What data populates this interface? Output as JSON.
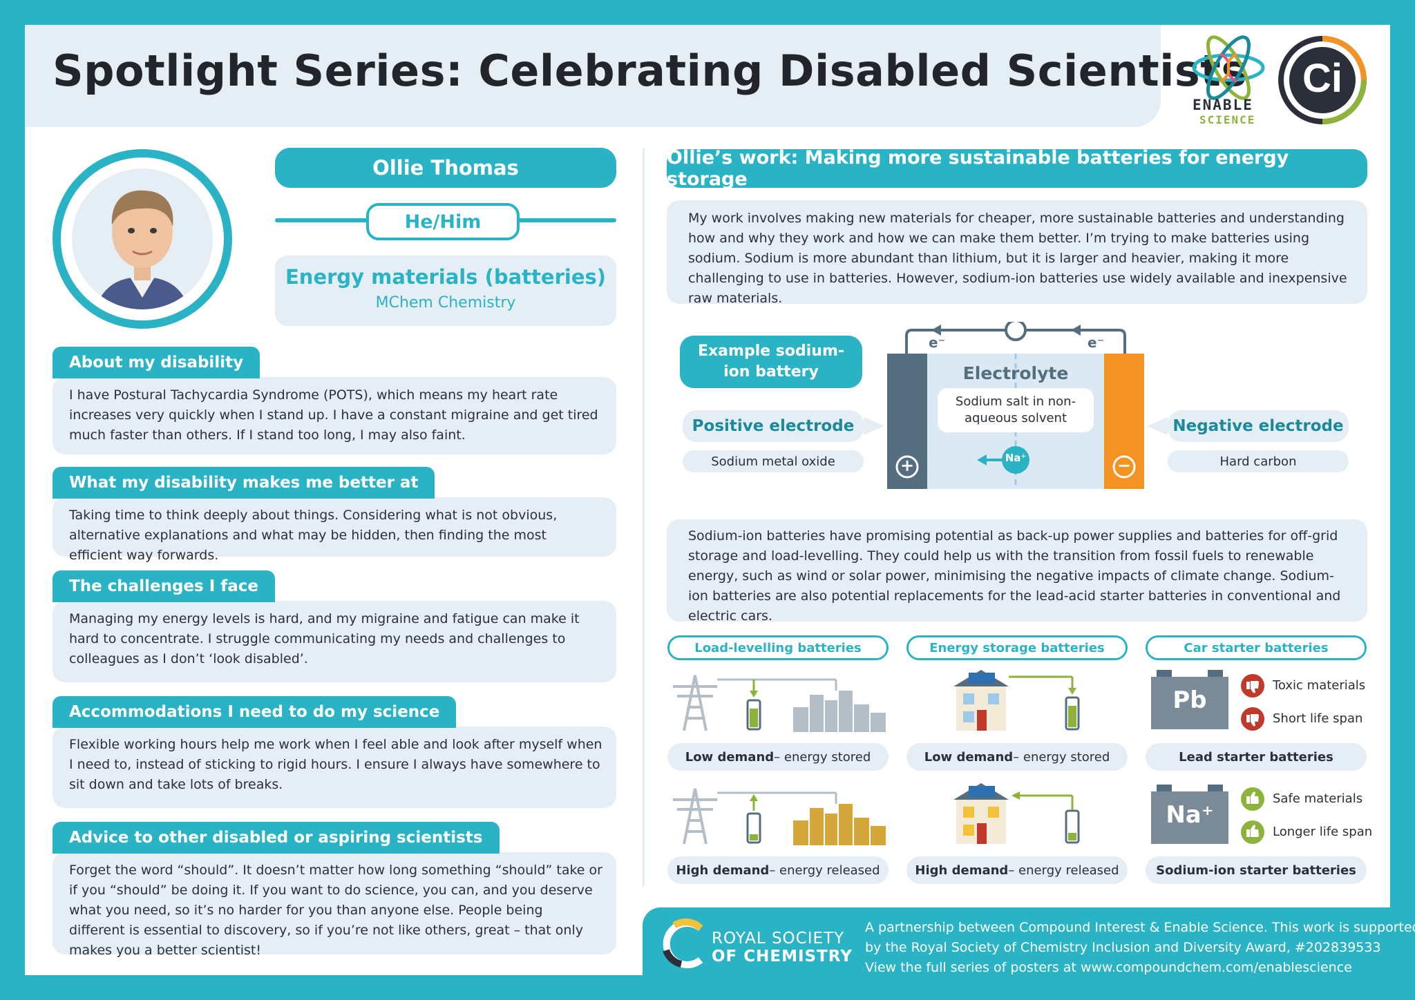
{
  "header": {
    "title": "Spotlight Series: Celebrating Disabled Scientists",
    "enable_logo_line1": "ENABLE",
    "enable_logo_line2": "SCIENCE",
    "ci_logo": "Ci"
  },
  "profile": {
    "name": "Ollie Thomas",
    "pronouns": "He/Him",
    "field": "Energy materials (batteries)",
    "degree": "MChem Chemistry"
  },
  "sections": [
    {
      "title": "About my disability",
      "text": "I have Postural Tachycardia Syndrome (POTS), which means my heart rate increases very quickly when I stand up. I have a constant migraine and get tired much faster than others. If I stand too long, I may also faint."
    },
    {
      "title": "What my disability makes me better at",
      "text": "Taking time to think deeply about things. Considering what is not obvious, alternative explanations and what may be hidden, then finding the most efficient way forwards."
    },
    {
      "title": "The challenges I face",
      "text": "Managing my energy levels is hard, and my migraine and fatigue can make it hard to concentrate. I struggle communicating my needs and challenges to colleagues as I don’t ‘look disabled’."
    },
    {
      "title": "Accommodations I need to do my science",
      "text": "Flexible working hours help me work when I feel able and look after myself when I need to, instead of sticking to rigid hours. I ensure I always have somewhere to sit down and take lots of breaks."
    },
    {
      "title": "Advice to other disabled or aspiring scientists",
      "text": "Forget the word “should”. It doesn’t matter how long something “should” take or if you “should” be doing it. If you want to do science, you can, and you deserve what you need, so it’s no harder for you than anyone else. People being different is essential to discovery, so if you’re not like others, great – that only makes you a better scientist!"
    }
  ],
  "work": {
    "title": "Ollie’s work: Making more sustainable batteries for energy storage",
    "intro": "My work involves making new materials for cheaper, more sustainable batteries and understanding how and why they work and how we can make them better. I’m trying to make batteries using sodium. Sodium is more abundant than lithium, but it is larger and heavier, making it more challenging to use in batteries. However, sodium-ion batteries use widely available and inexpensive raw materials.",
    "outro": "Sodium-ion batteries have promising potential as back-up power supplies and batteries for off-grid storage and load-levelling. They could help us with the transition from fossil fuels to renewable energy, such as wind or solar power, minimising the negative impacts of climate change. Sodium-ion batteries are also potential replacements for the lead-acid starter batteries in conventional and electric cars."
  },
  "battery": {
    "label": "Example sodium-ion battery",
    "electrolyte": "Electrolyte",
    "electrolyte_desc": "Sodium salt in non-aqueous solvent",
    "positive_label": "Positive electrode",
    "positive_material": "Sodium metal oxide",
    "negative_label": "Negative electrode",
    "negative_material": "Hard carbon",
    "electron": "e⁻",
    "ion": "Na⁺",
    "plus": "+",
    "minus": "−"
  },
  "apps": {
    "col1_title": "Load-levelling batteries",
    "col2_title": "Energy storage batteries",
    "col3_title": "Car starter batteries",
    "low_demand_prefix": "Low demand",
    "low_demand_suffix": " – energy stored",
    "high_demand_prefix": "High demand",
    "high_demand_suffix": " – energy released",
    "pb_symbol": "Pb",
    "na_symbol": "Na⁺",
    "toxic": "Toxic materials",
    "short_life": "Short life span",
    "lead_label": "Lead starter batteries",
    "safe": "Safe materials",
    "longer_life": "Longer life span",
    "sodium_label": "Sodium-ion starter batteries"
  },
  "footer": {
    "rsc_line1": "ROYAL SOCIETY",
    "rsc_line2": "OF CHEMISTRY",
    "line1": "A partnership between Compound Interest & Enable Science. This work is supported",
    "line2": "by the Royal Society of Chemistry Inclusion and Diversity Award, #202839533",
    "line3": "View the full series of posters at www.compoundchem.com/enablescience"
  },
  "colors": {
    "teal": "#2ab3c5",
    "panel": "#e6eef5",
    "dark": "#23252d",
    "orange": "#f39323",
    "slate": "#546e80",
    "green": "#8db33a",
    "red": "#c0392b"
  }
}
